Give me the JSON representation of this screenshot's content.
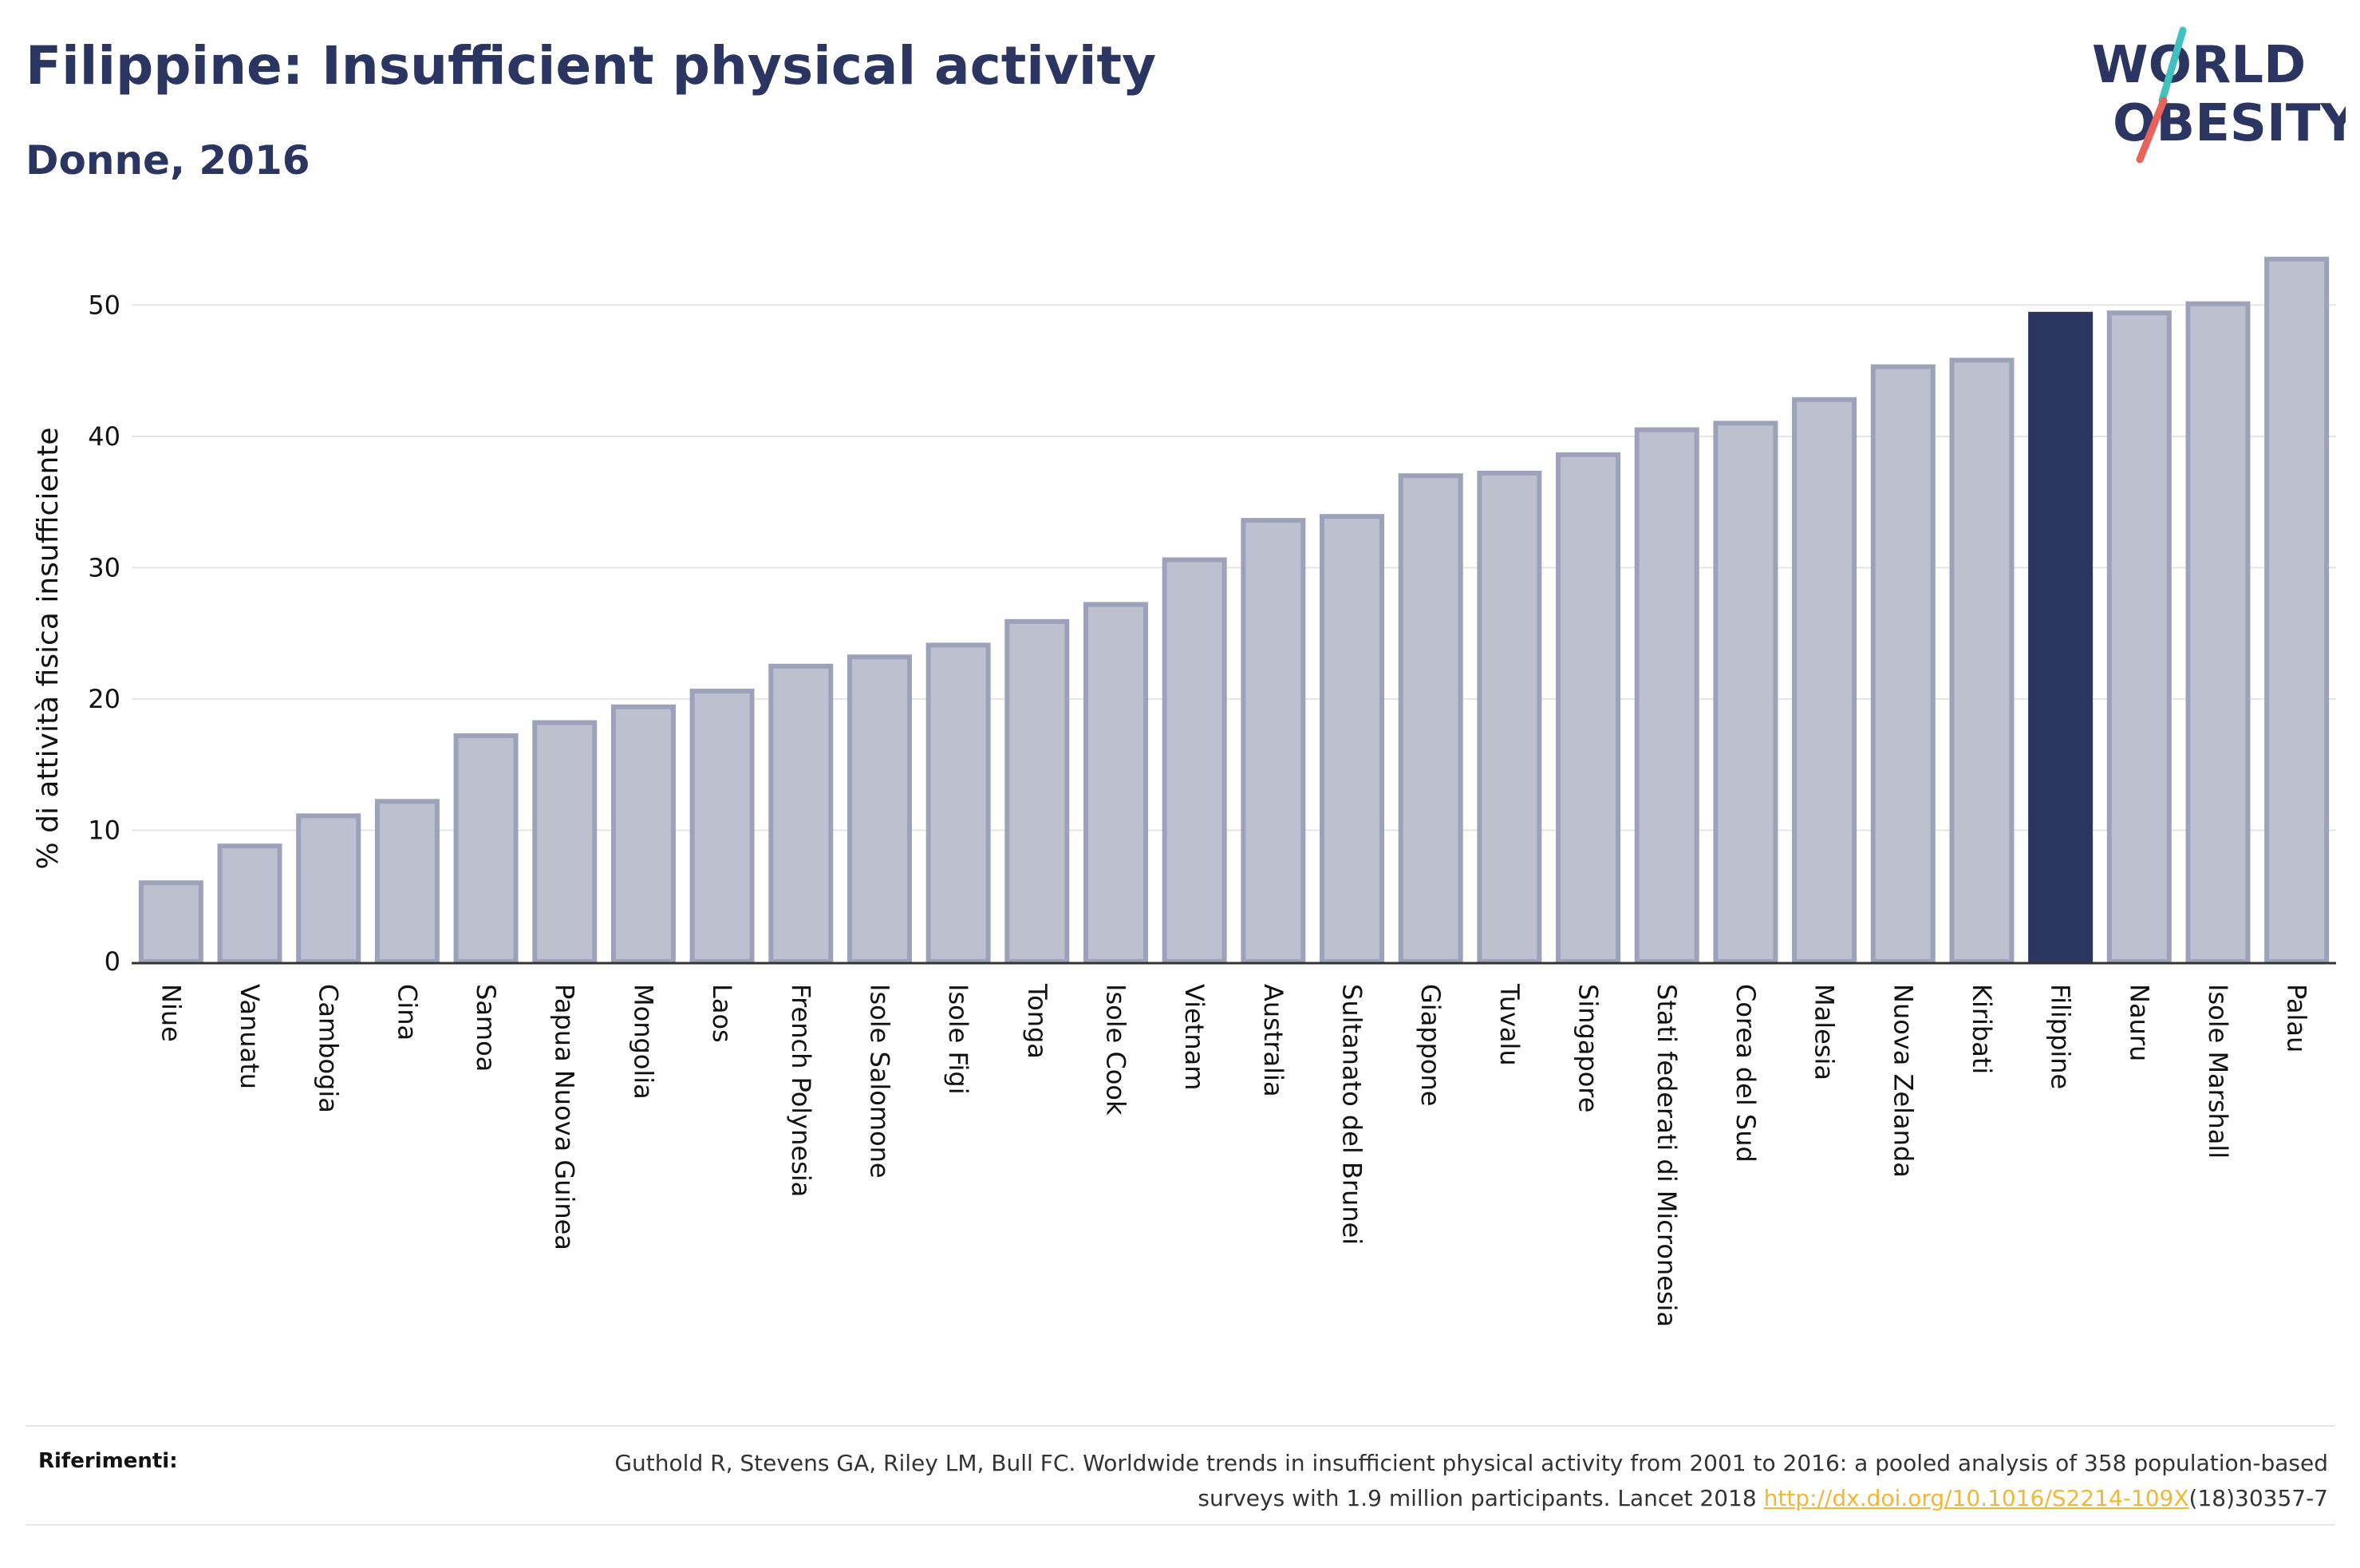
{
  "title": "Filippine: Insufficient physical activity",
  "subtitle": "Donne, 2016",
  "logo": {
    "line1": "WORLD",
    "line2": "OBESITY",
    "text_color": "#2b3561",
    "slash_colors": [
      "#3fc1c0",
      "#e8645a"
    ]
  },
  "colors": {
    "bar": "#bcc0cf",
    "bar_border": "#9da2bb",
    "highlight": "#2b3561",
    "grid": "#e5e5e5",
    "axis": "#333333"
  },
  "chart_data": {
    "type": "bar",
    "title": "Filippine: Insufficient physical activity",
    "subtitle": "Donne, 2016",
    "ylabel": "% di attività fisica insufficiente",
    "xlabel": "",
    "ylim": [
      0,
      55
    ],
    "yticks": [
      0,
      10,
      20,
      30,
      40,
      50
    ],
    "grid": true,
    "highlight": "Filippine",
    "categories": [
      "Niue",
      "Vanuatu",
      "Cambogia",
      "Cina",
      "Samoa",
      "Papua Nuova Guinea",
      "Mongolia",
      "Laos",
      "French Polynesia",
      "Isole Salomone",
      "Isole Figi",
      "Tonga",
      "Isole Cook",
      "Vietnam",
      "Australia",
      "Sultanato del Brunei",
      "Giappone",
      "Tuvalu",
      "Singapore",
      "Stati federati di Micronesia",
      "Corea del Sud",
      "Malesia",
      "Nuova Zelanda",
      "Kiribati",
      "Filippine",
      "Nauru",
      "Isole Marshall",
      "Palau"
    ],
    "values": [
      6.0,
      8.8,
      11.1,
      12.2,
      17.2,
      18.2,
      19.4,
      20.6,
      22.5,
      23.2,
      24.1,
      25.9,
      27.2,
      30.6,
      33.6,
      33.9,
      37.0,
      37.2,
      38.6,
      40.5,
      41.0,
      42.8,
      45.3,
      45.8,
      49.3,
      49.4,
      50.1,
      53.5
    ]
  },
  "references": {
    "label": "Riferimenti:",
    "text_before": "Guthold R, Stevens GA, Riley LM, Bull FC. Worldwide trends in insufficient physical activity from 2001 to 2016: a pooled analysis of 358 population-based surveys with 1.9 million participants. Lancet 2018 ",
    "link_text": "http://dx.doi.org/10.1016/S2214-109X",
    "text_after": "(18)30357-7"
  }
}
